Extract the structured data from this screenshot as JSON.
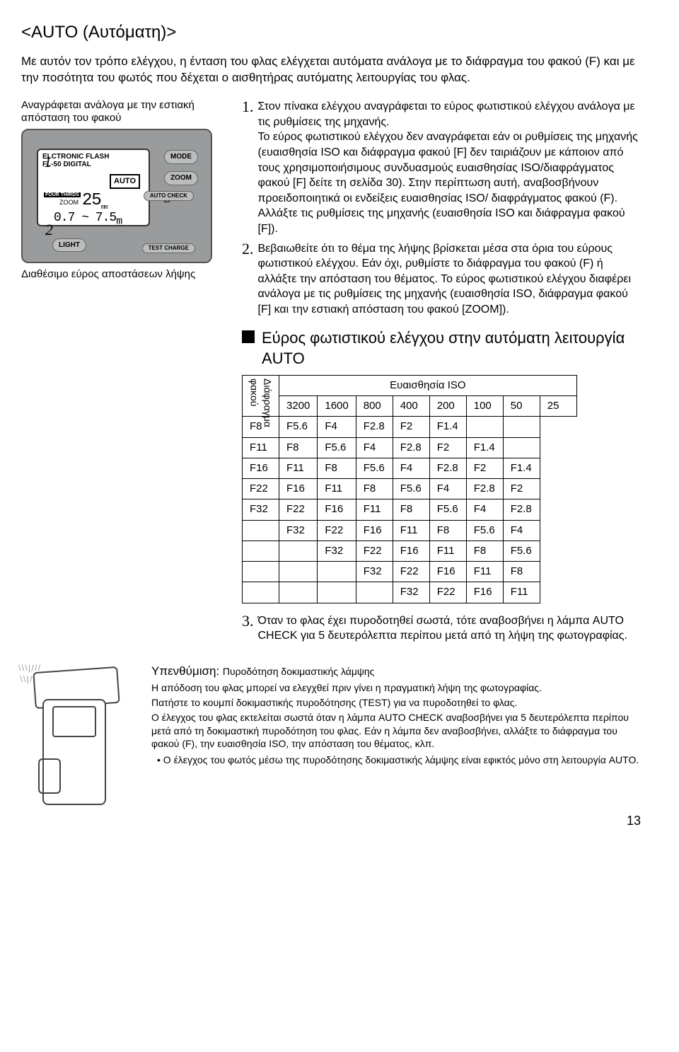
{
  "title": "<AUTO (Αυτόματη)>",
  "intro": "Με αυτόν τον τρόπο ελέγχου, η ένταση του φλας ελέγχεται αυτόματα ανάλογα με το διάφραγμα του φακού (F) και με την ποσότητα του φωτός που δέχεται ο αισθητήρας αυτόματης λειτουργίας του φλας.",
  "left": {
    "focal_caption": "Αναγράφεται ανάλογα με την εστιακή απόσταση του φακού",
    "range_caption": "Διαθέσιμο εύρος αποστάσεων λήψης",
    "lcd": {
      "head1": "ELCTRONIC FLASH",
      "head2": "FL-50 DIGITAL",
      "auto": "AUTO",
      "fourthirds": "FOUR THIRDS",
      "zoom": "ZOOM",
      "mm_val": "25",
      "mm_unit": "mm",
      "range": "0.7 ~ 7.5",
      "range_unit": "m"
    },
    "buttons": {
      "mode": "MODE",
      "zoom": "ZOOM",
      "light": "LIGHT",
      "autocheck": "AUTO CHECK",
      "test": "TEST CHARGE"
    },
    "markers": {
      "m1": "1",
      "m2": "2",
      "m3": "3"
    }
  },
  "steps": {
    "n1": "1.",
    "t1": "Στον πίνακα ελέγχου αναγράφεται το εύρος φωτιστικού ελέγχου ανάλογα με τις ρυθμίσεις της μηχανής.",
    "t1b": "Το εύρος φωτιστικού ελέγχου δεν αναγράφεται εάν οι ρυθμίσεις της μηχανής (ευαισθησία ISO και διάφραγμα φακού [F] δεν ταιριάζουν με κάποιον από τους χρησιμοποιήσιμους συνδυασμούς ευαισθησίας ISO/διαφράγματος φακού [F] δείτε τη σελίδα 30). Στην περίπτωση αυτή, αναβοσβήνουν προειδοποιητικά οι ενδείξεις ευαισθησίας ISO/ διαφράγματος φακού (F). Αλλάξτε τις ρυθμίσεις της μηχανής (ευαισθησία ISO και διάφραγμα φακού [F]).",
    "n2": "2.",
    "t2": "Βεβαιωθείτε ότι το θέμα της λήψης βρίσκεται μέσα στα όρια του εύρους φωτιστικού ελέγχου. Εάν όχι, ρυθμίστε το διάφραγμα του φακού (F) ή αλλάξτε την απόσταση του θέματος. Το εύρος φωτιστικού ελέγχου διαφέρει ανάλογα με τις ρυθμίσεις της μηχανής (ευαισθησία ISO, διάφραγμα φακού [F] και την εστιακή απόσταση του φακού [ZOOM]).",
    "sub_heading": "Εύρος φωτιστικού ελέγχου στην αυτόματη λειτουργία AUTO",
    "n3": "3.",
    "t3": "Όταν το φλας έχει πυροδοτηθεί σωστά, τότε αναβοσβήνει η λάμπα AUTO CHECK για 5 δευτερόλεπτα περίπου μετά από τη λήψη της φωτογραφίας."
  },
  "table": {
    "iso_label": "Ευαισθησία ISO",
    "side_label": "Διάφραγμα φακού",
    "iso_cols": [
      "3200",
      "1600",
      "800",
      "400",
      "200",
      "100",
      "50",
      "25"
    ],
    "rows": [
      [
        "F8",
        "F5.6",
        "F4",
        "F2.8",
        "F2",
        "F1.4",
        "",
        ""
      ],
      [
        "F11",
        "F8",
        "F5.6",
        "F4",
        "F2.8",
        "F2",
        "F1.4",
        ""
      ],
      [
        "F16",
        "F11",
        "F8",
        "F5.6",
        "F4",
        "F2.8",
        "F2",
        "F1.4"
      ],
      [
        "F22",
        "F16",
        "F11",
        "F8",
        "F5.6",
        "F4",
        "F2.8",
        "F2"
      ],
      [
        "F32",
        "F22",
        "F16",
        "F11",
        "F8",
        "F5.6",
        "F4",
        "F2.8"
      ],
      [
        "",
        "F32",
        "F22",
        "F16",
        "F11",
        "F8",
        "F5.6",
        "F4"
      ],
      [
        "",
        "",
        "F32",
        "F22",
        "F16",
        "F11",
        "F8",
        "F5.6"
      ],
      [
        "",
        "",
        "",
        "F32",
        "F22",
        "F16",
        "F11",
        "F8"
      ],
      [
        "",
        "",
        "",
        "",
        "F32",
        "F22",
        "F16",
        "F11"
      ]
    ]
  },
  "reminder": {
    "label": "Υπενθύμιση: ",
    "sub": "Πυροδότηση δοκιμαστικής λάμψης",
    "body1": "Η απόδοση του φλας μπορεί να ελεγχθεί πριν γίνει η πραγματική λήψη της φωτογραφίας.",
    "body2": "Πατήστε το κουμπί δοκιμαστικής πυροδότησης (TEST) για να πυροδοτηθεί το φλας.",
    "body3": "Ο έλεγχος του φλας εκτελείται σωστά όταν η λάμπα AUTO CHECK αναβοσβήνει για 5 δευτερόλεπτα περίπου μετά από τη δοκιμαστική πυροδότηση του φλας. Εάν η λάμπα δεν αναβοσβήνει, αλλάξτε το διάφραγμα του φακού (F), την ευαισθησία ISO, την απόσταση του θέματος, κλπ.",
    "bullet": "• Ο έλεγχος του φωτός μέσω της πυροδότησης δοκιμαστικής λάμψης είναι εφικτός μόνο στη λειτουργία AUTO."
  },
  "page": "13"
}
